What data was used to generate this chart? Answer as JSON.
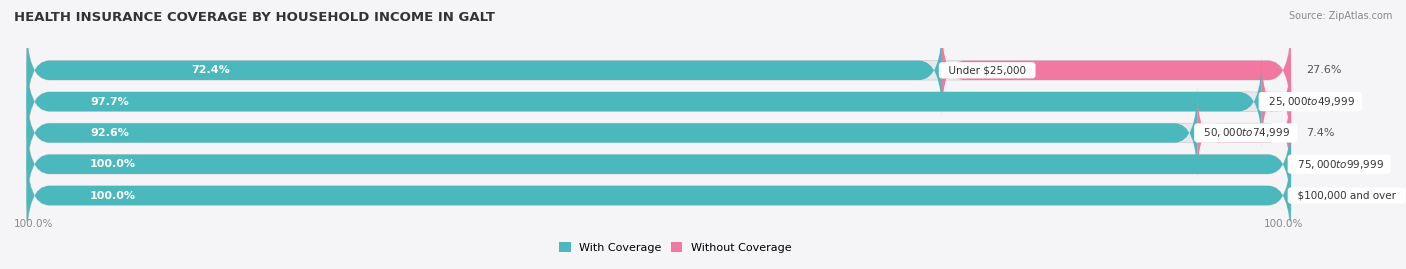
{
  "title": "HEALTH INSURANCE COVERAGE BY HOUSEHOLD INCOME IN GALT",
  "source": "Source: ZipAtlas.com",
  "categories": [
    "Under $25,000",
    "$25,000 to $49,999",
    "$50,000 to $74,999",
    "$75,000 to $99,999",
    "$100,000 and over"
  ],
  "with_coverage": [
    72.4,
    97.7,
    92.6,
    100.0,
    100.0
  ],
  "without_coverage": [
    27.6,
    2.3,
    7.4,
    0.0,
    0.0
  ],
  "color_with": "#4ab8bc",
  "color_without": "#f178a0",
  "color_bg_bar": "#e8e8ec",
  "color_bg_fig": "#f5f5f8",
  "legend_labels": [
    "With Coverage",
    "Without Coverage"
  ],
  "bottom_left_label": "100.0%",
  "bottom_right_label": "100.0%",
  "title_fontsize": 9.5,
  "value_fontsize": 8.0,
  "cat_fontsize": 7.5,
  "legend_fontsize": 8.0,
  "axis_label_fontsize": 7.5
}
